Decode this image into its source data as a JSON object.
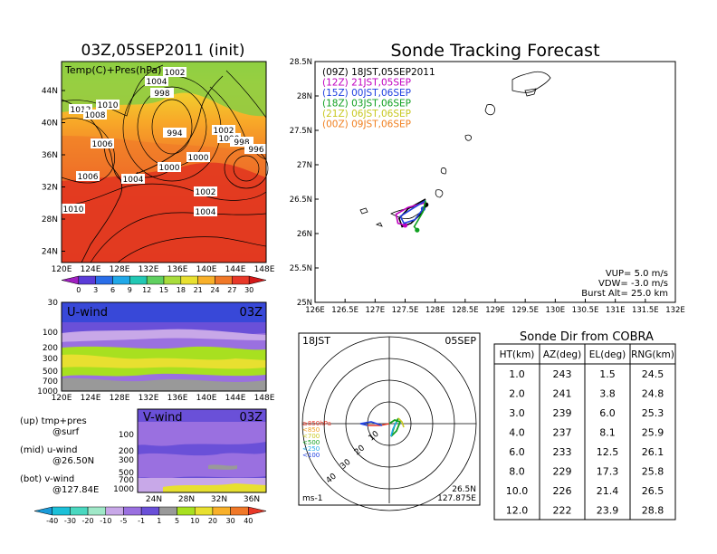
{
  "left_panel": {
    "title": "03Z,05SEP2011 (init)",
    "map_label": "Temp(C)+Pres(hPa)",
    "lat_labels": [
      "44N",
      "40N",
      "36N",
      "32N",
      "28N",
      "24N"
    ],
    "lon_labels": [
      "120E",
      "124E",
      "128E",
      "132E",
      "136E",
      "140E",
      "144E",
      "148E"
    ],
    "isobar_labels": [
      "1012",
      "1010",
      "1008",
      "1006",
      "1006",
      "1004",
      "1004",
      "1002",
      "1002",
      "1000",
      "1000",
      "1000",
      "998",
      "998",
      "996",
      "994",
      "1010",
      "1004",
      "1002"
    ],
    "colorbar_ticks": [
      "0",
      "3",
      "6",
      "9",
      "12",
      "15",
      "18",
      "21",
      "24",
      "27",
      "30"
    ],
    "colorbar_colors": [
      "#a020c0",
      "#5a3cd8",
      "#2a6ee8",
      "#20a8e8",
      "#22c8b4",
      "#60d060",
      "#a8dc3c",
      "#e8e030",
      "#f8b02a",
      "#f07828",
      "#e83828",
      "#d21818"
    ]
  },
  "u_panel": {
    "label": "U-wind",
    "time": "03Z",
    "y_ticks": [
      "30",
      "100",
      "200",
      "300",
      "500",
      "700",
      "1000"
    ],
    "x_ticks": [
      "120E",
      "124E",
      "128E",
      "132E",
      "136E",
      "140E",
      "144E",
      "148E"
    ]
  },
  "v_panel": {
    "label": "V-wind",
    "time": "03Z",
    "y_ticks": [
      "100",
      "200",
      "300",
      "500",
      "700",
      "1000"
    ],
    "x_ticks": [
      "24N",
      "28N",
      "32N",
      "36N"
    ]
  },
  "legend_notes": [
    {
      "line1": "(up) tmp+pres",
      "line2": "@surf"
    },
    {
      "line1": "(mid) u-wind",
      "line2": "@26.50N"
    },
    {
      "line1": "(bot) v-wind",
      "line2": "@127.84E"
    }
  ],
  "wind_colorbar": {
    "ticks": [
      "-40",
      "-30",
      "-20",
      "-10",
      "-5",
      "-1",
      "1",
      "5",
      "10",
      "20",
      "30",
      "40"
    ],
    "colors": [
      "#1a9ad8",
      "#1cc0d8",
      "#4ad8c0",
      "#a0e8c8",
      "#c8a8e8",
      "#9a70e0",
      "#6a50d8",
      "#999999",
      "#a8e020",
      "#e8e030",
      "#f8b02a",
      "#f07828",
      "#e83828"
    ]
  },
  "tracking": {
    "title": "Sonde Tracking Forecast",
    "legend": [
      {
        "text": "(09Z)  18JST,05SEP2011",
        "color": "#000000"
      },
      {
        "text": "(12Z)  21JST,05SEP",
        "color": "#c000c0"
      },
      {
        "text": "(15Z)  00JST,06SEP",
        "color": "#2040e0"
      },
      {
        "text": "(18Z)  03JST,06SEP",
        "color": "#10a020"
      },
      {
        "text": "(21Z)  06JST,06SEP",
        "color": "#c8c820"
      },
      {
        "text": "(00Z)  09JST,06SEP",
        "color": "#f08020"
      }
    ],
    "vup": "VUP=  5.0  m/s",
    "vdw": "VDW=  -3.0  m/s",
    "burst": "Burst Alt=  25.0  km"
  },
  "chart_data": [
    {
      "type": "line",
      "title": "Sonde Tracking Forecast",
      "x_ticks": [
        "126E",
        "126.5E",
        "127E",
        "127.5E",
        "128E",
        "128.5E",
        "129E",
        "129.5E",
        "130E",
        "130.5E",
        "131E",
        "131.5E",
        "132E"
      ],
      "y_ticks": [
        "28.5N",
        "28N",
        "27.5N",
        "27N",
        "26.5N",
        "26N",
        "25.5N",
        "25N"
      ],
      "xlim": [
        126,
        132
      ],
      "ylim": [
        25,
        28.5
      ],
      "series": [
        {
          "name": "(09Z)  18JST,05SEP2011",
          "lon": [
            127.84,
            127.55,
            127.4,
            127.45,
            127.6,
            127.78,
            127.85
          ],
          "lat": [
            26.5,
            26.36,
            26.22,
            26.1,
            26.15,
            26.3,
            26.42
          ]
        },
        {
          "name": "(12Z)  21JST,05SEP",
          "lon": [
            127.84,
            127.55,
            127.35,
            127.38,
            127.5
          ],
          "lat": [
            26.45,
            26.38,
            26.28,
            26.15,
            26.12
          ]
        },
        {
          "name": "(15Z)  00JST,06SEP",
          "lon": [
            127.84,
            127.6,
            127.42,
            127.48,
            127.66,
            127.8
          ],
          "lat": [
            26.48,
            26.35,
            26.25,
            26.15,
            26.2,
            26.36
          ]
        },
        {
          "name": "(18Z)  03JST,06SEP",
          "lon": [
            127.84,
            127.8,
            127.72,
            127.65,
            127.7
          ],
          "lat": [
            26.48,
            26.32,
            26.2,
            26.1,
            26.05
          ]
        }
      ]
    },
    {
      "type": "polar",
      "time_label": "18JST",
      "date_label": "05SEP",
      "ring_labels": [
        "10",
        "20",
        "30",
        "40"
      ],
      "legend_levels": [
        "≥850hPa",
        "<850",
        "<700",
        "<500",
        "<250",
        "<100"
      ],
      "legend_colors": [
        "#e83828",
        "#f0a020",
        "#c8c820",
        "#10a020",
        "#20a8e8",
        "#2040e0"
      ],
      "unit": "ms-1",
      "position": [
        "26.5N",
        "127.875E"
      ]
    },
    {
      "type": "table",
      "title": "Sonde Dir from COBRA",
      "columns": [
        "HT(km)",
        "AZ(deg)",
        "EL(deg)",
        "RNG(km)"
      ],
      "rows": [
        [
          "1.0",
          "243",
          "1.5",
          "24.5"
        ],
        [
          "2.0",
          "241",
          "3.8",
          "24.8"
        ],
        [
          "3.0",
          "239",
          "6.0",
          "25.3"
        ],
        [
          "4.0",
          "237",
          "8.1",
          "25.9"
        ],
        [
          "6.0",
          "233",
          "12.5",
          "26.1"
        ],
        [
          "8.0",
          "229",
          "17.3",
          "25.8"
        ],
        [
          "10.0",
          "226",
          "21.4",
          "26.5"
        ],
        [
          "12.0",
          "222",
          "23.9",
          "28.8"
        ]
      ]
    }
  ]
}
